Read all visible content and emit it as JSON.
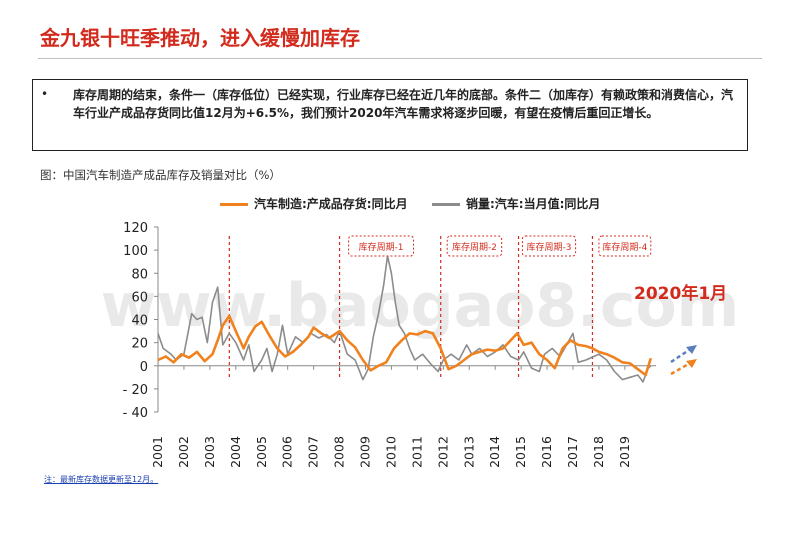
{
  "header": {
    "title": "金九银十旺季推动，进入缓慢加库存"
  },
  "bullet": {
    "marker": "•",
    "text": "库存周期的结束，条件一（库存低位）已经实现，行业库存已经在近几年的底部。条件二（加库存）有赖政策和消费信心，汽车行业产成品存货同比值12月为+6.5%，我们预计2020年汽车需求将逐步回暖，有望在疫情后重回正增长。"
  },
  "caption": "图：中国汽车制造产成品库存及销量对比（%）",
  "footnote": "注：最新库存数据更新至12月。",
  "watermark": "www.baogao8.com",
  "colors": {
    "inventory": "#f0821e",
    "sales": "#8c8c8c",
    "cycle": "#d22b1d",
    "arrow_blue": "#5a7fbf"
  },
  "chart_data": {
    "type": "line",
    "x_unit": "year",
    "xlim": [
      2001,
      2020.2
    ],
    "ylim": [
      -40,
      120
    ],
    "y_ticks": [
      120,
      100,
      80,
      60,
      40,
      20,
      0,
      -20,
      -40
    ],
    "y_tick_labels": [
      "120",
      "100",
      "80",
      "60",
      "40",
      "20",
      "0",
      "- 20",
      "- 40"
    ],
    "x_tick_labels": [
      "2001",
      "2002",
      "2003",
      "2004",
      "2005",
      "2006",
      "2007",
      "2008",
      "2009",
      "2010",
      "2011",
      "2012",
      "2013",
      "2014",
      "2015",
      "2016",
      "2017",
      "2018",
      "2019"
    ],
    "annotation_main": "2020年1月",
    "cycle_dividers": [
      2003.75,
      2008.0,
      2011.9,
      2014.9,
      2017.75
    ],
    "cycles": [
      {
        "label": "库存周期-1",
        "x_start": 2008.35,
        "x_end": 2010.85
      },
      {
        "label": "库存周期-2",
        "x_start": 2012.15,
        "x_end": 2014.25
      },
      {
        "label": "库存周期-3",
        "x_start": 2015.05,
        "x_end": 2017.1
      },
      {
        "label": "库存周期-4",
        "x_start": 2018.0,
        "x_end": 2020.0
      }
    ],
    "series": [
      {
        "name": "汽车制造:产成品存货:同比月",
        "color": "#f0821e",
        "points": [
          [
            2001,
            5
          ],
          [
            2001.3,
            8
          ],
          [
            2001.6,
            3
          ],
          [
            2001.9,
            10
          ],
          [
            2002.2,
            7
          ],
          [
            2002.5,
            12
          ],
          [
            2002.8,
            4
          ],
          [
            2003.1,
            10
          ],
          [
            2003.3,
            22
          ],
          [
            2003.5,
            35
          ],
          [
            2003.75,
            43
          ],
          [
            2004.0,
            30
          ],
          [
            2004.3,
            15
          ],
          [
            2004.5,
            25
          ],
          [
            2004.75,
            34
          ],
          [
            2005.0,
            38
          ],
          [
            2005.3,
            26
          ],
          [
            2005.6,
            15
          ],
          [
            2005.9,
            8
          ],
          [
            2006.2,
            12
          ],
          [
            2006.5,
            18
          ],
          [
            2006.8,
            25
          ],
          [
            2007.0,
            33
          ],
          [
            2007.3,
            28
          ],
          [
            2007.6,
            24
          ],
          [
            2008.0,
            30
          ],
          [
            2008.3,
            22
          ],
          [
            2008.6,
            16
          ],
          [
            2008.9,
            5
          ],
          [
            2009.2,
            -4
          ],
          [
            2009.5,
            0
          ],
          [
            2009.8,
            3
          ],
          [
            2010.1,
            15
          ],
          [
            2010.4,
            22
          ],
          [
            2010.7,
            28
          ],
          [
            2011.0,
            27
          ],
          [
            2011.3,
            30
          ],
          [
            2011.6,
            28
          ],
          [
            2011.9,
            15
          ],
          [
            2012.2,
            -3
          ],
          [
            2012.5,
            0
          ],
          [
            2012.8,
            5
          ],
          [
            2013.1,
            10
          ],
          [
            2013.4,
            12
          ],
          [
            2013.7,
            14
          ],
          [
            2014.0,
            13
          ],
          [
            2014.3,
            15
          ],
          [
            2014.6,
            22
          ],
          [
            2014.85,
            28
          ],
          [
            2015.1,
            18
          ],
          [
            2015.4,
            20
          ],
          [
            2015.7,
            10
          ],
          [
            2016.0,
            5
          ],
          [
            2016.3,
            -2
          ],
          [
            2016.6,
            15
          ],
          [
            2016.9,
            22
          ],
          [
            2017.2,
            18
          ],
          [
            2017.5,
            17
          ],
          [
            2017.75,
            15
          ],
          [
            2018.0,
            12
          ],
          [
            2018.3,
            10
          ],
          [
            2018.6,
            7
          ],
          [
            2018.9,
            3
          ],
          [
            2019.2,
            2
          ],
          [
            2019.5,
            -3
          ],
          [
            2019.8,
            -8
          ],
          [
            2020.0,
            6.5
          ]
        ]
      },
      {
        "name": "销量:汽车:当月值:同比月",
        "color": "#8c8c8c",
        "points": [
          [
            2001,
            28
          ],
          [
            2001.2,
            15
          ],
          [
            2001.5,
            10
          ],
          [
            2001.7,
            5
          ],
          [
            2002.0,
            10
          ],
          [
            2002.3,
            45
          ],
          [
            2002.5,
            40
          ],
          [
            2002.7,
            42
          ],
          [
            2002.9,
            20
          ],
          [
            2003.1,
            55
          ],
          [
            2003.3,
            68
          ],
          [
            2003.5,
            18
          ],
          [
            2003.75,
            28
          ],
          [
            2004.0,
            20
          ],
          [
            2004.3,
            5
          ],
          [
            2004.5,
            18
          ],
          [
            2004.7,
            -5
          ],
          [
            2005.0,
            5
          ],
          [
            2005.2,
            15
          ],
          [
            2005.4,
            -5
          ],
          [
            2005.6,
            10
          ],
          [
            2005.8,
            35
          ],
          [
            2006.0,
            10
          ],
          [
            2006.3,
            25
          ],
          [
            2006.6,
            20
          ],
          [
            2006.9,
            28
          ],
          [
            2007.2,
            24
          ],
          [
            2007.5,
            27
          ],
          [
            2007.8,
            20
          ],
          [
            2008.0,
            30
          ],
          [
            2008.3,
            10
          ],
          [
            2008.6,
            5
          ],
          [
            2008.9,
            -12
          ],
          [
            2009.1,
            -3
          ],
          [
            2009.3,
            25
          ],
          [
            2009.5,
            45
          ],
          [
            2009.7,
            70
          ],
          [
            2009.85,
            95
          ],
          [
            2010.0,
            80
          ],
          [
            2010.15,
            55
          ],
          [
            2010.3,
            35
          ],
          [
            2010.5,
            28
          ],
          [
            2010.7,
            15
          ],
          [
            2010.9,
            5
          ],
          [
            2011.2,
            10
          ],
          [
            2011.5,
            2
          ],
          [
            2011.8,
            -5
          ],
          [
            2012.0,
            5
          ],
          [
            2012.3,
            10
          ],
          [
            2012.6,
            5
          ],
          [
            2012.9,
            18
          ],
          [
            2013.1,
            10
          ],
          [
            2013.4,
            15
          ],
          [
            2013.7,
            8
          ],
          [
            2014.0,
            12
          ],
          [
            2014.3,
            18
          ],
          [
            2014.6,
            8
          ],
          [
            2014.9,
            5
          ],
          [
            2015.1,
            12
          ],
          [
            2015.4,
            -2
          ],
          [
            2015.7,
            -5
          ],
          [
            2015.9,
            10
          ],
          [
            2016.2,
            15
          ],
          [
            2016.5,
            8
          ],
          [
            2016.8,
            20
          ],
          [
            2017.0,
            28
          ],
          [
            2017.2,
            3
          ],
          [
            2017.5,
            5
          ],
          [
            2017.8,
            8
          ],
          [
            2018.0,
            10
          ],
          [
            2018.3,
            5
          ],
          [
            2018.6,
            -5
          ],
          [
            2018.9,
            -12
          ],
          [
            2019.2,
            -10
          ],
          [
            2019.5,
            -8
          ],
          [
            2019.7,
            -14
          ],
          [
            2019.9,
            -2
          ],
          [
            2020.0,
            0
          ]
        ]
      }
    ]
  }
}
